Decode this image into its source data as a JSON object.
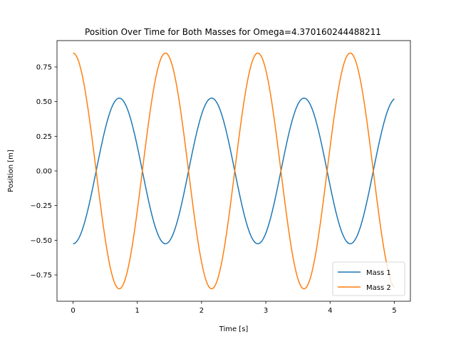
{
  "chart_data": {
    "type": "line",
    "title": "Position Over Time for Both Masses for Omega=4.370160244488211",
    "xlabel": "Time [s]",
    "ylabel": "Position [m]",
    "xlim": [
      -0.25,
      5.25
    ],
    "ylim": [
      -0.94,
      0.94
    ],
    "xticks": [
      0,
      1,
      2,
      3,
      4,
      5
    ],
    "xtick_labels": [
      "0",
      "1",
      "2",
      "3",
      "4",
      "5"
    ],
    "yticks": [
      -0.75,
      -0.5,
      -0.25,
      0.0,
      0.25,
      0.5,
      0.75
    ],
    "ytick_labels": [
      "−0.75",
      "−0.50",
      "−0.25",
      "0.00",
      "0.25",
      "0.50",
      "0.75"
    ],
    "grid": false,
    "legend_position": "lower-right",
    "omega": 4.370160244488211,
    "series": [
      {
        "name": "Mass 1",
        "color": "#1f77b4",
        "amplitude": 0.525,
        "phase": 3.14159265,
        "x_start": 0,
        "x_end": 5
      },
      {
        "name": "Mass 2",
        "color": "#ff7f0e",
        "amplitude": 0.85,
        "phase": 0,
        "x_start": 0,
        "x_end": 5
      }
    ]
  }
}
